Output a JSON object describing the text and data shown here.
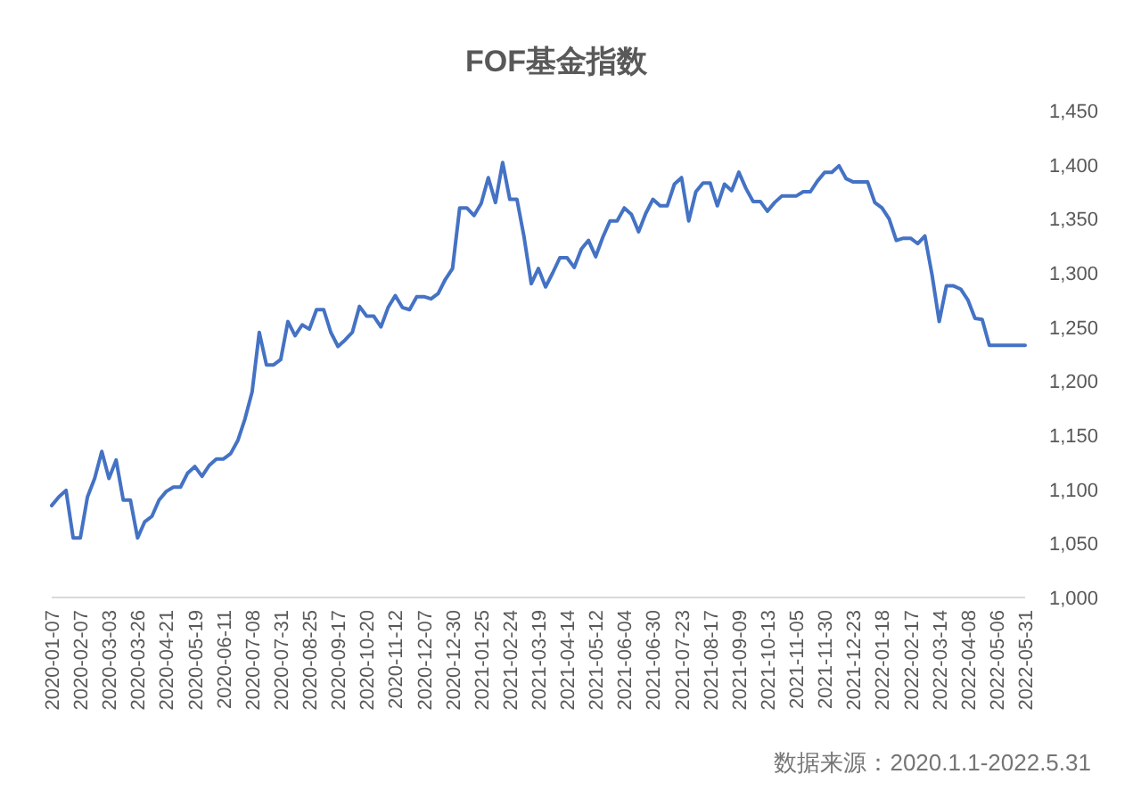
{
  "chart_data": {
    "type": "line",
    "title": "FOF基金指数",
    "categories": [
      "2020-01-07",
      null,
      null,
      null,
      "2020-02-07",
      null,
      null,
      null,
      "2020-03-03",
      null,
      null,
      null,
      "2020-03-26",
      null,
      null,
      null,
      "2020-04-21",
      null,
      null,
      null,
      "2020-05-19",
      null,
      null,
      null,
      "2020-06-11",
      null,
      null,
      null,
      "2020-07-08",
      null,
      null,
      null,
      "2020-07-31",
      null,
      null,
      null,
      "2020-08-25",
      null,
      null,
      null,
      "2020-09-17",
      null,
      null,
      null,
      "2020-10-20",
      null,
      null,
      null,
      "2020-11-12",
      null,
      null,
      null,
      "2020-12-07",
      null,
      null,
      null,
      "2020-12-30",
      null,
      null,
      null,
      "2021-01-25",
      null,
      null,
      null,
      "2021-02-24",
      null,
      null,
      null,
      "2021-03-19",
      null,
      null,
      null,
      "2021-04-14",
      null,
      null,
      null,
      "2021-05-12",
      null,
      null,
      null,
      "2021-06-04",
      null,
      null,
      null,
      "2021-06-30",
      null,
      null,
      null,
      "2021-07-23",
      null,
      null,
      null,
      "2021-08-17",
      null,
      null,
      null,
      "2021-09-09",
      null,
      null,
      null,
      "2021-10-13",
      null,
      null,
      null,
      "2021-11-05",
      null,
      null,
      null,
      "2021-11-30",
      null,
      null,
      null,
      "2021-12-23",
      null,
      null,
      null,
      "2022-01-18",
      null,
      null,
      null,
      "2022-02-17",
      null,
      null,
      null,
      "2022-03-14",
      null,
      null,
      null,
      "2022-04-08",
      null,
      null,
      null,
      "2022-05-06",
      null,
      null,
      null,
      "2022-05-31"
    ],
    "values": [
      1085,
      1093,
      1099,
      1055,
      1055,
      1093,
      1110,
      1135,
      1110,
      1127,
      1090,
      1090,
      1055,
      1070,
      1075,
      1090,
      1098,
      1102,
      1102,
      1115,
      1121,
      1112,
      1122,
      1128,
      1128,
      1133,
      1145,
      1165,
      1190,
      1245,
      1215,
      1215,
      1220,
      1255,
      1242,
      1252,
      1248,
      1266,
      1266,
      1245,
      1232,
      1238,
      1245,
      1269,
      1260,
      1260,
      1250,
      1268,
      1279,
      1268,
      1266,
      1278,
      1278,
      1276,
      1281,
      1294,
      1304,
      1360,
      1360,
      1353,
      1364,
      1388,
      1365,
      1402,
      1368,
      1368,
      1333,
      1290,
      1304,
      1287,
      1300,
      1314,
      1314,
      1305,
      1322,
      1330,
      1315,
      1333,
      1348,
      1348,
      1360,
      1354,
      1338,
      1355,
      1368,
      1362,
      1362,
      1382,
      1388,
      1348,
      1375,
      1383,
      1383,
      1362,
      1382,
      1376,
      1393,
      1378,
      1366,
      1366,
      1357,
      1365,
      1371,
      1371,
      1371,
      1375,
      1375,
      1385,
      1393,
      1393,
      1399,
      1387,
      1384,
      1384,
      1384,
      1365,
      1360,
      1350,
      1330,
      1332,
      1332,
      1327,
      1334,
      1298,
      1255,
      1288,
      1288,
      1285,
      1275,
      1258,
      1257,
      1233,
      1233,
      1233,
      1233,
      1233,
      1233
    ],
    "color": "#4472c4",
    "ylim": [
      1000,
      1450
    ],
    "yticks": [
      {
        "value": 1000,
        "label": "1,000"
      },
      {
        "value": 1050,
        "label": "1,050"
      },
      {
        "value": 1100,
        "label": "1,100"
      },
      {
        "value": 1150,
        "label": "1,150"
      },
      {
        "value": 1200,
        "label": "1,200"
      },
      {
        "value": 1250,
        "label": "1,250"
      },
      {
        "value": 1300,
        "label": "1,300"
      },
      {
        "value": 1350,
        "label": "1,350"
      },
      {
        "value": 1400,
        "label": "1,400"
      },
      {
        "value": 1450,
        "label": "1,450"
      }
    ],
    "annotations": [
      "数据来源：2020.1.1-2022.5.31"
    ]
  }
}
